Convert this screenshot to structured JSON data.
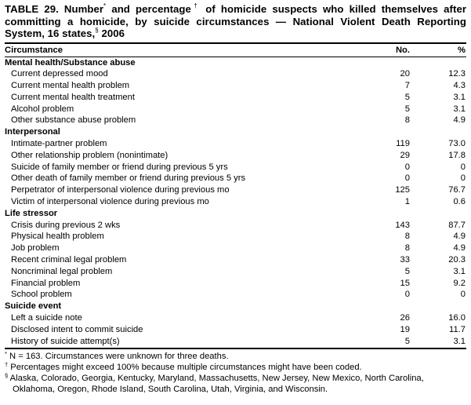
{
  "title": {
    "part1": "TABLE 29. Number",
    "mark1": "*",
    "part2": " and percentage",
    "mark2": "†",
    "part3": " of homicide suspects who killed themselves after committing a homicide, by suicide circumstances — National Violent Death Reporting System, 16 states,",
    "mark3": "§",
    "part4": " 2006"
  },
  "headers": {
    "circumstance": "Circumstance",
    "no": "No.",
    "pct": "%"
  },
  "groups": [
    {
      "label": "Mental health/Substance abuse",
      "rows": [
        {
          "label": "Current depressed mood",
          "no": "20",
          "pct": "12.3"
        },
        {
          "label": "Current mental health problem",
          "no": "7",
          "pct": "4.3"
        },
        {
          "label": "Current mental health treatment",
          "no": "5",
          "pct": "3.1"
        },
        {
          "label": "Alcohol problem",
          "no": "5",
          "pct": "3.1"
        },
        {
          "label": "Other substance abuse problem",
          "no": "8",
          "pct": "4.9"
        }
      ]
    },
    {
      "label": "Interpersonal",
      "rows": [
        {
          "label": "Intimate-partner problem",
          "no": "119",
          "pct": "73.0"
        },
        {
          "label": "Other relationship problem (nonintimate)",
          "no": "29",
          "pct": "17.8"
        },
        {
          "label": "Suicide of family member or friend during previous 5 yrs",
          "no": "0",
          "pct": "0"
        },
        {
          "label": "Other death of family member or friend during previous 5 yrs",
          "no": "0",
          "pct": "0"
        },
        {
          "label": "Perpetrator of interpersonal violence during previous mo",
          "no": "125",
          "pct": "76.7"
        },
        {
          "label": "Victim of interpersonal violence during previous mo",
          "no": "1",
          "pct": "0.6"
        }
      ]
    },
    {
      "label": "Life stressor",
      "rows": [
        {
          "label": "Crisis during previous 2 wks",
          "no": "143",
          "pct": "87.7"
        },
        {
          "label": "Physical health problem",
          "no": "8",
          "pct": "4.9"
        },
        {
          "label": "Job problem",
          "no": "8",
          "pct": "4.9"
        },
        {
          "label": "Recent criminal legal problem",
          "no": "33",
          "pct": "20.3"
        },
        {
          "label": "Noncriminal legal problem",
          "no": "5",
          "pct": "3.1"
        },
        {
          "label": "Financial problem",
          "no": "15",
          "pct": "9.2"
        },
        {
          "label": "School problem",
          "no": "0",
          "pct": "0"
        }
      ]
    },
    {
      "label": "Suicide event",
      "rows": [
        {
          "label": "Left a suicide note",
          "no": "26",
          "pct": "16.0"
        },
        {
          "label": "Disclosed intent to commit suicide",
          "no": "19",
          "pct": "11.7"
        },
        {
          "label": "History of suicide attempt(s)",
          "no": "5",
          "pct": "3.1"
        }
      ]
    }
  ],
  "footnotes": [
    {
      "mark": "*",
      "text": " N = 163.  Circumstances were unknown for three deaths."
    },
    {
      "mark": "†",
      "text": " Percentages might exceed 100% because multiple circumstances might have been coded."
    },
    {
      "mark": "§",
      "text": " Alaska, Colorado, Georgia, Kentucky, Maryland, Massachusetts, New Jersey, New Mexico, North Carolina, Oklahoma, Oregon, Rhode Island, South Carolina, Utah, Virginia, and Wisconsin."
    }
  ]
}
